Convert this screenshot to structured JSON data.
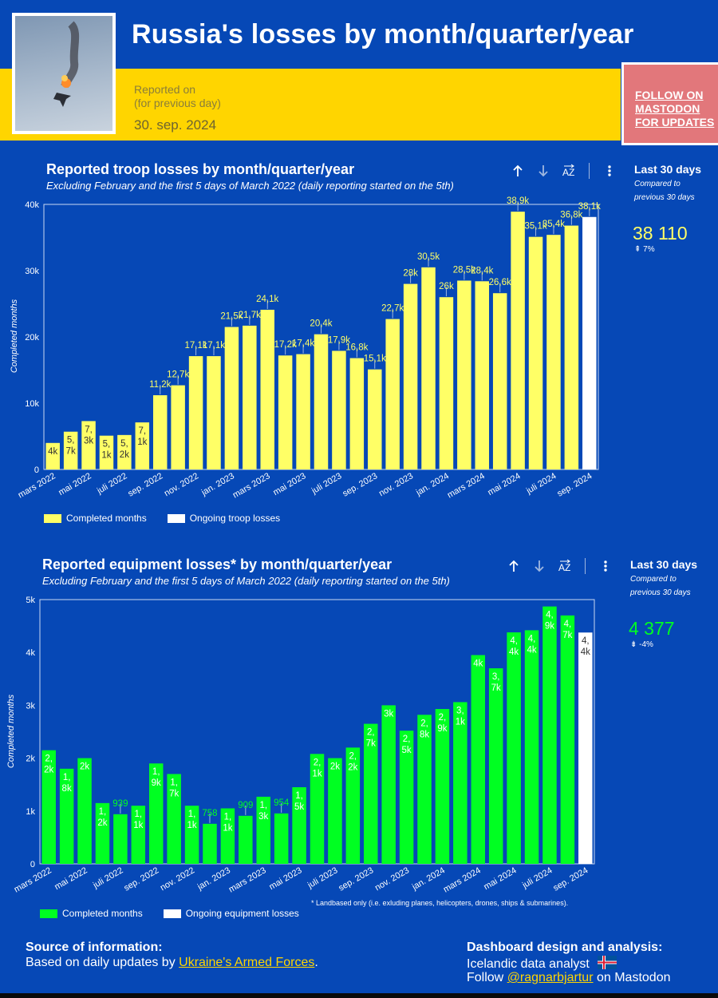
{
  "header": {
    "title": "Russia's losses by month/quarter/year",
    "reported_label_1": "Reported on",
    "reported_label_2": "(for previous day)",
    "reported_date": "30. sep. 2024",
    "follow_line_1": "FOLLOW ON",
    "follow_line_2": "MASTODON",
    "follow_line_3": "FOR UPDATES"
  },
  "colors": {
    "background": "#0648b6",
    "yellow": "#ffd500",
    "troop_bar": "#ffff66",
    "equipment_bar": "#00ff22",
    "ongoing_bar": "#ffffff",
    "follow_button": "#e2777b"
  },
  "troop_panel": {
    "title": "Reported troop losses by month/quarter/year",
    "subtitle": "Excluding February and the first 5 days of March 2022 (daily reporting started on the 5th)",
    "kpi_head": "Last 30 days",
    "kpi_cmp_1": "Compared to",
    "kpi_cmp_2": "previous 30 days",
    "kpi_value": "38 110",
    "kpi_delta": "⇞ 7%",
    "legend_completed": "Completed months",
    "legend_ongoing": "Ongoing troop losses"
  },
  "equipment_panel": {
    "title": "Reported equipment losses* by month/quarter/year",
    "subtitle": "Excluding February and the first 5 days of March 2022 (daily reporting started on the 5th)",
    "kpi_head": "Last 30 days",
    "kpi_cmp_1": "Compared to",
    "kpi_cmp_2": "previous 30 days",
    "kpi_value": "4 377",
    "kpi_delta": "⇟ -4%",
    "legend_completed": "Completed months",
    "legend_ongoing": "Ongoing equipment losses",
    "footnote": "* Landbased only (i.e. exluding planes, helicopters, drones, ships & submarines)."
  },
  "toolbar_icons": [
    "sort-ascending-icon",
    "sort-descending-icon",
    "sort-alpha-icon",
    "more-options-icon"
  ],
  "footer": {
    "source_heading": "Source of information:",
    "source_text": "Based on daily updates by ",
    "source_link": "Ukraine's Armed Forces",
    "source_end": ".",
    "design_heading": "Dashboard design and analysis:",
    "design_text": "Icelandic data analyst",
    "follow_text": "Follow ",
    "follow_link": "@ragnarbjartur",
    "follow_end": " on Mastodon"
  },
  "chart_data": [
    {
      "type": "bar",
      "title": "Reported troop losses by month/quarter/year",
      "ylabel": "Completed months",
      "ylim": [
        0,
        40000
      ],
      "yticks": [
        0,
        10000,
        20000,
        30000,
        40000
      ],
      "ytick_labels": [
        "0",
        "10k",
        "20k",
        "30k",
        "40k"
      ],
      "categories": [
        "mars 2022",
        "apr 2022",
        "mai 2022",
        "jun 2022",
        "juli 2022",
        "aug 2022",
        "sep. 2022",
        "okt 2022",
        "nov. 2022",
        "des 2022",
        "jan. 2023",
        "feb 2023",
        "mars 2023",
        "apr 2023",
        "mai 2023",
        "jun 2023",
        "juli 2023",
        "aug 2023",
        "sep. 2023",
        "okt 2023",
        "nov. 2023",
        "des 2023",
        "jan. 2024",
        "feb 2024",
        "mars 2024",
        "apr 2024",
        "mai 2024",
        "jun 2024",
        "juli 2024",
        "aug 2024",
        "sep. 2024"
      ],
      "xtick_labels": [
        "mars 2022",
        "mai 2022",
        "juli 2022",
        "sep. 2022",
        "nov. 2022",
        "jan. 2023",
        "mars 2023",
        "mai 2023",
        "juli 2023",
        "sep. 2023",
        "nov. 2023",
        "jan. 2024",
        "mars 2024",
        "mai 2024",
        "juli 2024",
        "sep. 2024"
      ],
      "series": [
        {
          "name": "Completed months",
          "values": [
            4000,
            5700,
            7300,
            5100,
            5200,
            7100,
            11200,
            12700,
            17100,
            17100,
            21500,
            21700,
            24100,
            17200,
            17400,
            20400,
            17900,
            16800,
            15100,
            22700,
            28000,
            30500,
            26000,
            28500,
            28400,
            26600,
            38900,
            35100,
            35400,
            36800,
            null
          ],
          "labels": [
            "4k",
            "5,7k",
            "7,3k",
            "5,1k",
            "5,2k",
            "7,1k",
            "11,2k",
            "12,7k",
            "17,1k",
            "17,1k",
            "21,5k",
            "21,7k",
            "24,1k",
            "17,2k",
            "17,4k",
            "20,4k",
            "17,9k",
            "16,8k",
            "15,1k",
            "22,7k",
            "28k",
            "30,5k",
            "26k",
            "28,5k",
            "28,4k",
            "26,6k",
            "38,9k",
            "35,1k",
            "35,4k",
            "36,8k",
            ""
          ]
        },
        {
          "name": "Ongoing troop losses",
          "values": [
            null,
            null,
            null,
            null,
            null,
            null,
            null,
            null,
            null,
            null,
            null,
            null,
            null,
            null,
            null,
            null,
            null,
            null,
            null,
            null,
            null,
            null,
            null,
            null,
            null,
            null,
            null,
            null,
            null,
            null,
            38100
          ],
          "labels": [
            "",
            "",
            "",
            "",
            "",
            "",
            "",
            "",
            "",
            "",
            "",
            "",
            "",
            "",
            "",
            "",
            "",
            "",
            "",
            "",
            "",
            "",
            "",
            "",
            "",
            "",
            "",
            "",
            "",
            "",
            "38,1k"
          ]
        }
      ]
    },
    {
      "type": "bar",
      "title": "Reported equipment losses* by month/quarter/year",
      "ylabel": "Completed months",
      "ylim": [
        0,
        5000
      ],
      "yticks": [
        0,
        1000,
        2000,
        3000,
        4000,
        5000
      ],
      "ytick_labels": [
        "0",
        "1k",
        "2k",
        "3k",
        "4k",
        "5k"
      ],
      "categories": [
        "mars 2022",
        "apr 2022",
        "mai 2022",
        "jun 2022",
        "juli 2022",
        "aug 2022",
        "sep. 2022",
        "okt 2022",
        "nov. 2022",
        "des 2022",
        "jan. 2023",
        "feb 2023",
        "mars 2023",
        "apr 2023",
        "mai 2023",
        "jun 2023",
        "juli 2023",
        "aug 2023",
        "sep. 2023",
        "okt 2023",
        "nov. 2023",
        "des 2023",
        "jan. 2024",
        "feb 2024",
        "mars 2024",
        "apr 2024",
        "mai 2024",
        "jun 2024",
        "juli 2024",
        "aug 2024",
        "sep. 2024"
      ],
      "xtick_labels": [
        "mars 2022",
        "mai 2022",
        "juli 2022",
        "sep. 2022",
        "nov. 2022",
        "jan. 2023",
        "mars 2023",
        "mai 2023",
        "juli 2023",
        "sep. 2023",
        "nov. 2023",
        "jan. 2024",
        "mars 2024",
        "mai 2024",
        "juli 2024",
        "sep. 2024"
      ],
      "series": [
        {
          "name": "Completed months",
          "values": [
            2150,
            1800,
            2000,
            1150,
            939,
            1100,
            1900,
            1700,
            1100,
            758,
            1050,
            909,
            1270,
            954,
            1450,
            2080,
            2000,
            2200,
            2650,
            3000,
            2520,
            2820,
            2930,
            3060,
            3950,
            3700,
            4380,
            4420,
            4870,
            4700,
            null
          ],
          "labels": [
            "2,2k",
            "1,8k",
            "2k",
            "1,2k",
            "939",
            "1,1k",
            "1,9k",
            "1,7k",
            "1,1k",
            "758",
            "1,1k",
            "909",
            "1,3k",
            "954",
            "1,5k",
            "2,1k",
            "2k",
            "2,2k",
            "2,7k",
            "3k",
            "2,5k",
            "2,8k",
            "2,9k",
            "3,1k",
            "4k",
            "3,7k",
            "4,4k",
            "4,4k",
            "4,9k",
            "4,7k",
            ""
          ]
        },
        {
          "name": "Ongoing equipment losses",
          "values": [
            null,
            null,
            null,
            null,
            null,
            null,
            null,
            null,
            null,
            null,
            null,
            null,
            null,
            null,
            null,
            null,
            null,
            null,
            null,
            null,
            null,
            null,
            null,
            null,
            null,
            null,
            null,
            null,
            null,
            null,
            4377
          ],
          "labels": [
            "",
            "",
            "",
            "",
            "",
            "",
            "",
            "",
            "",
            "",
            "",
            "",
            "",
            "",
            "",
            "",
            "",
            "",
            "",
            "",
            "",
            "",
            "",
            "",
            "",
            "",
            "",
            "",
            "",
            "",
            "4,4k"
          ]
        }
      ]
    }
  ]
}
